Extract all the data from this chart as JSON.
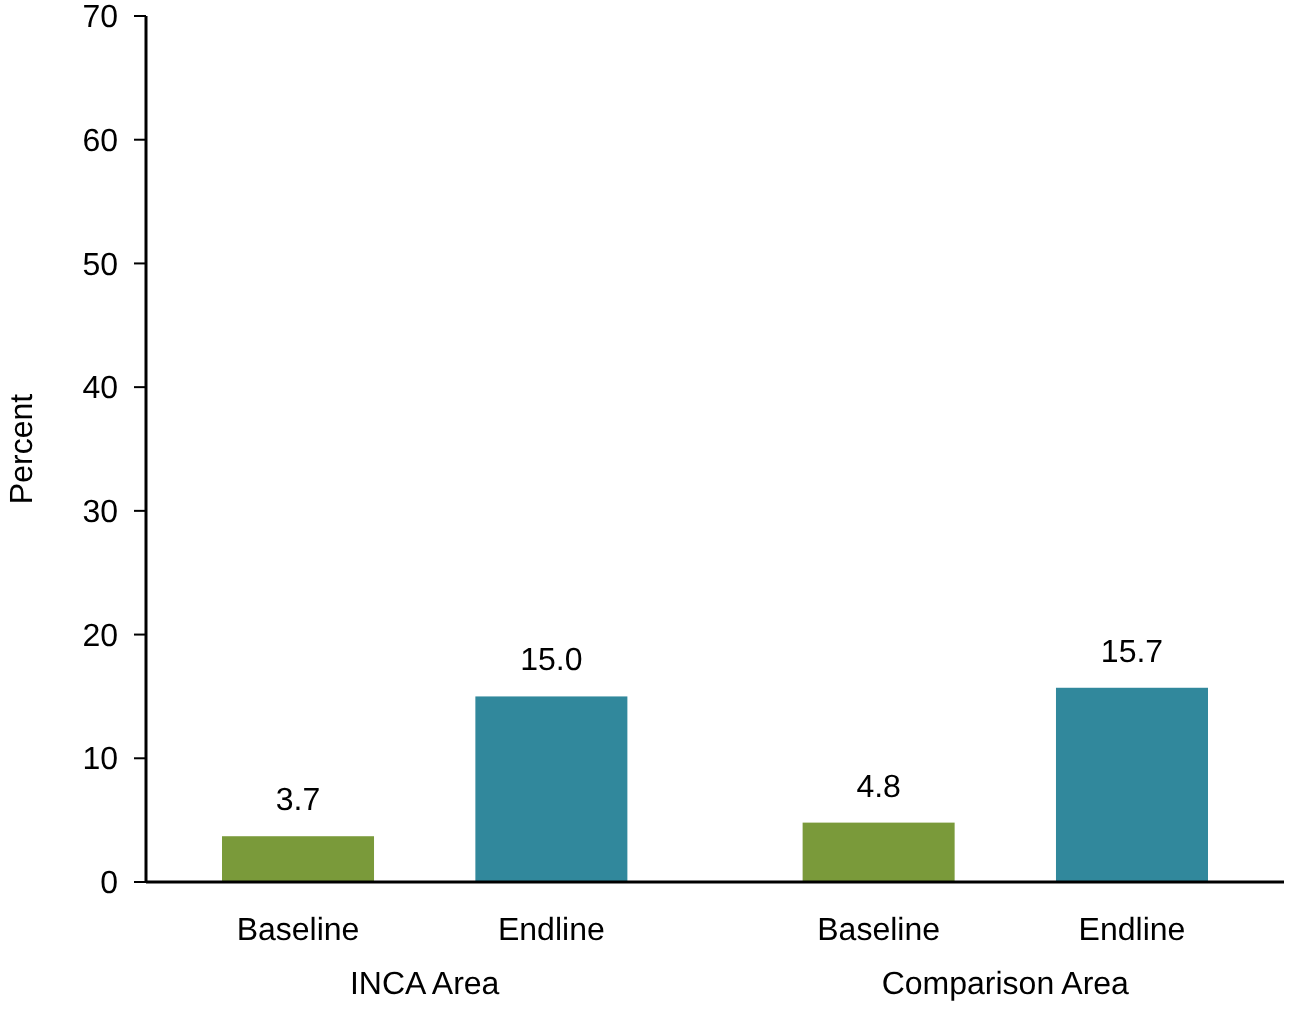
{
  "chart_data": {
    "type": "bar",
    "ylabel": "Percent",
    "categories": [
      "INCA Area",
      "Comparison Area"
    ],
    "series": [
      {
        "name": "Baseline",
        "color": "#7a9a3a",
        "values": [
          3.7,
          4.8
        ],
        "value_labels": [
          "3.7",
          "4.8"
        ]
      },
      {
        "name": "Endline",
        "color": "#31889c",
        "values": [
          15.0,
          15.7
        ],
        "value_labels": [
          "15.0",
          "15.7"
        ]
      }
    ],
    "ylim": [
      0,
      70
    ],
    "yticks": [
      0,
      10,
      20,
      30,
      40,
      50,
      60,
      70
    ],
    "grid": false
  }
}
